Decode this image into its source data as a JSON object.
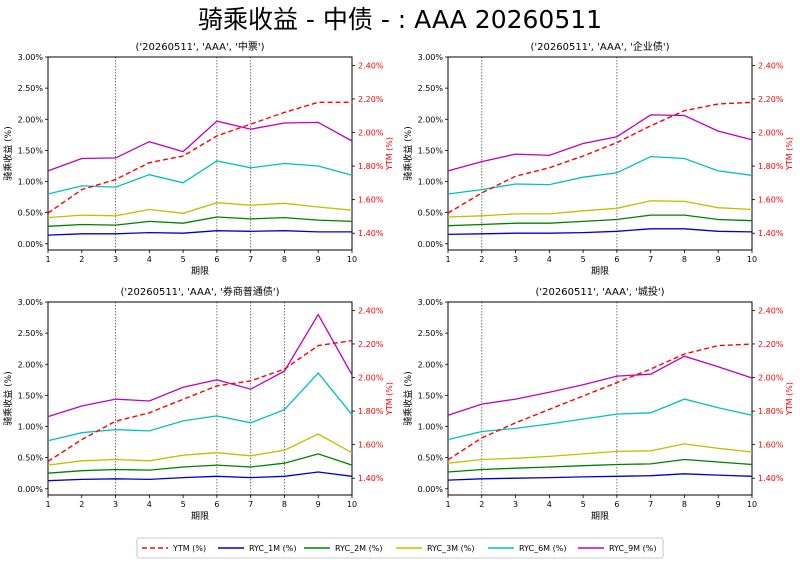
{
  "suptitle": "骑乘收益 - 中债 - : AAA 20260511",
  "legend": {
    "placement": "bottom-center",
    "entries": [
      {
        "label": "YTM (%)",
        "color": "#ff0000",
        "dash": true
      },
      {
        "label": "RYC_1M (%)",
        "color": "#0000cc",
        "dash": false
      },
      {
        "label": "RYC_2M (%)",
        "color": "#008000",
        "dash": false
      },
      {
        "label": "RYC_3M (%)",
        "color": "#c0c000",
        "dash": false
      },
      {
        "label": "RYC_6M (%)",
        "color": "#00c0c0",
        "dash": false
      },
      {
        "label": "RYC_9M (%)",
        "color": "#c000c0",
        "dash": false
      }
    ]
  },
  "chart_data": [
    {
      "type": "line",
      "title": "('20260511', 'AAA', '中票')",
      "xlabel": "期限",
      "ylabel": "骑乘收益 (%)",
      "y2label": "YTM (%)",
      "x": [
        1,
        2,
        3,
        4,
        5,
        6,
        7,
        8,
        9,
        10
      ],
      "xticks": [
        "1",
        "2",
        "3",
        "4",
        "5",
        "6",
        "7",
        "8",
        "9",
        "10"
      ],
      "ylim": [
        -0.1,
        3.0
      ],
      "yticks": [
        "0.00%",
        "0.50%",
        "1.00%",
        "1.50%",
        "2.00%",
        "2.50%",
        "3.00%"
      ],
      "y2lim": [
        1.3,
        2.45
      ],
      "y2ticks": [
        "1.40%",
        "1.60%",
        "1.80%",
        "2.00%",
        "2.20%",
        "2.40%"
      ],
      "vlines": [
        3,
        6,
        7
      ],
      "ytm": [
        1.52,
        1.66,
        1.72,
        1.82,
        1.86,
        1.98,
        2.05,
        2.12,
        2.18,
        2.18
      ],
      "series": [
        {
          "name": "RYC_1M (%)",
          "values": [
            0.14,
            0.16,
            0.16,
            0.18,
            0.17,
            0.21,
            0.2,
            0.21,
            0.19,
            0.19
          ]
        },
        {
          "name": "RYC_2M (%)",
          "values": [
            0.28,
            0.31,
            0.3,
            0.36,
            0.33,
            0.43,
            0.4,
            0.42,
            0.38,
            0.36
          ]
        },
        {
          "name": "RYC_3M (%)",
          "values": [
            0.42,
            0.46,
            0.45,
            0.55,
            0.49,
            0.66,
            0.62,
            0.65,
            0.59,
            0.54
          ]
        },
        {
          "name": "RYC_6M (%)",
          "values": [
            0.8,
            0.93,
            0.91,
            1.11,
            0.98,
            1.33,
            1.22,
            1.29,
            1.25,
            1.1
          ]
        },
        {
          "name": "RYC_9M (%)",
          "values": [
            1.17,
            1.37,
            1.38,
            1.64,
            1.48,
            1.97,
            1.84,
            1.94,
            1.95,
            1.65
          ]
        }
      ]
    },
    {
      "type": "line",
      "title": "('20260511', 'AAA', '企业债')",
      "xlabel": "期限",
      "ylabel": "骑乘收益 (%)",
      "y2label": "YTM (%)",
      "x": [
        1,
        2,
        3,
        4,
        5,
        6,
        7,
        8,
        9,
        10
      ],
      "xticks": [
        "1",
        "2",
        "3",
        "4",
        "5",
        "6",
        "7",
        "8",
        "9",
        "10"
      ],
      "ylim": [
        -0.1,
        3.0
      ],
      "yticks": [
        "0.00%",
        "0.50%",
        "1.00%",
        "1.50%",
        "2.00%",
        "2.50%",
        "3.00%"
      ],
      "y2lim": [
        1.3,
        2.45
      ],
      "y2ticks": [
        "1.40%",
        "1.60%",
        "1.80%",
        "2.00%",
        "2.20%",
        "2.40%"
      ],
      "vlines": [
        2,
        6
      ],
      "ytm": [
        1.52,
        1.64,
        1.74,
        1.79,
        1.86,
        1.94,
        2.04,
        2.13,
        2.17,
        2.18
      ],
      "series": [
        {
          "name": "RYC_1M (%)",
          "values": [
            0.15,
            0.16,
            0.17,
            0.17,
            0.18,
            0.2,
            0.24,
            0.24,
            0.2,
            0.19
          ]
        },
        {
          "name": "RYC_2M (%)",
          "values": [
            0.29,
            0.31,
            0.33,
            0.33,
            0.36,
            0.39,
            0.46,
            0.46,
            0.39,
            0.37
          ]
        },
        {
          "name": "RYC_3M (%)",
          "values": [
            0.43,
            0.45,
            0.48,
            0.48,
            0.53,
            0.57,
            0.69,
            0.68,
            0.58,
            0.55
          ]
        },
        {
          "name": "RYC_6M (%)",
          "values": [
            0.8,
            0.87,
            0.96,
            0.95,
            1.07,
            1.14,
            1.4,
            1.37,
            1.17,
            1.1
          ]
        },
        {
          "name": "RYC_9M (%)",
          "values": [
            1.17,
            1.32,
            1.44,
            1.42,
            1.61,
            1.72,
            2.07,
            2.06,
            1.81,
            1.67
          ]
        }
      ]
    },
    {
      "type": "line",
      "title": "('20260511', 'AAA', '券商普通债')",
      "xlabel": "期限",
      "ylabel": "骑乘收益 (%)",
      "y2label": "YTM (%)",
      "x": [
        1,
        2,
        3,
        4,
        5,
        6,
        7,
        8,
        9,
        10
      ],
      "xticks": [
        "1",
        "2",
        "3",
        "4",
        "5",
        "6",
        "7",
        "8",
        "9",
        "10"
      ],
      "ylim": [
        -0.1,
        3.0
      ],
      "yticks": [
        "0.00%",
        "0.50%",
        "1.00%",
        "1.50%",
        "2.00%",
        "2.50%",
        "3.00%"
      ],
      "y2lim": [
        1.3,
        2.45
      ],
      "y2ticks": [
        "1.40%",
        "1.60%",
        "1.80%",
        "2.00%",
        "2.20%",
        "2.40%"
      ],
      "vlines": [
        3,
        6,
        7,
        8
      ],
      "ytm": [
        1.5,
        1.63,
        1.74,
        1.79,
        1.87,
        1.95,
        1.98,
        2.05,
        2.19,
        2.22
      ],
      "series": [
        {
          "name": "RYC_1M (%)",
          "values": [
            0.13,
            0.15,
            0.16,
            0.15,
            0.18,
            0.2,
            0.18,
            0.2,
            0.27,
            0.2
          ]
        },
        {
          "name": "RYC_2M (%)",
          "values": [
            0.25,
            0.29,
            0.31,
            0.3,
            0.35,
            0.38,
            0.35,
            0.41,
            0.56,
            0.38
          ]
        },
        {
          "name": "RYC_3M (%)",
          "values": [
            0.38,
            0.45,
            0.47,
            0.45,
            0.54,
            0.58,
            0.53,
            0.62,
            0.88,
            0.58
          ]
        },
        {
          "name": "RYC_6M (%)",
          "values": [
            0.77,
            0.9,
            0.95,
            0.93,
            1.09,
            1.17,
            1.06,
            1.27,
            1.86,
            1.19
          ]
        },
        {
          "name": "RYC_9M (%)",
          "values": [
            1.16,
            1.33,
            1.44,
            1.41,
            1.63,
            1.75,
            1.6,
            1.89,
            2.8,
            1.83
          ]
        }
      ]
    },
    {
      "type": "line",
      "title": "('20260511', 'AAA', '城投')",
      "xlabel": "期限",
      "ylabel": "骑乘收益 (%)",
      "y2label": "YTM (%)",
      "x": [
        1,
        2,
        3,
        4,
        5,
        6,
        7,
        8,
        9,
        10
      ],
      "xticks": [
        "1",
        "2",
        "3",
        "4",
        "5",
        "6",
        "7",
        "8",
        "9",
        "10"
      ],
      "ylim": [
        -0.1,
        3.0
      ],
      "yticks": [
        "0.00%",
        "0.50%",
        "1.00%",
        "1.50%",
        "2.00%",
        "2.50%",
        "3.00%"
      ],
      "y2lim": [
        1.3,
        2.45
      ],
      "y2ticks": [
        "1.40%",
        "1.60%",
        "1.80%",
        "2.00%",
        "2.20%",
        "2.40%"
      ],
      "vlines": [
        2,
        6
      ],
      "ytm": [
        1.51,
        1.64,
        1.73,
        1.81,
        1.89,
        1.97,
        2.05,
        2.14,
        2.19,
        2.2
      ],
      "series": [
        {
          "name": "RYC_1M (%)",
          "values": [
            0.14,
            0.16,
            0.17,
            0.18,
            0.19,
            0.2,
            0.21,
            0.24,
            0.22,
            0.2
          ]
        },
        {
          "name": "RYC_2M (%)",
          "values": [
            0.27,
            0.31,
            0.33,
            0.35,
            0.37,
            0.39,
            0.4,
            0.47,
            0.43,
            0.39
          ]
        },
        {
          "name": "RYC_3M (%)",
          "values": [
            0.41,
            0.47,
            0.49,
            0.52,
            0.56,
            0.6,
            0.61,
            0.72,
            0.65,
            0.59
          ]
        },
        {
          "name": "RYC_6M (%)",
          "values": [
            0.79,
            0.92,
            0.97,
            1.04,
            1.12,
            1.2,
            1.22,
            1.44,
            1.3,
            1.18
          ]
        },
        {
          "name": "RYC_9M (%)",
          "values": [
            1.18,
            1.36,
            1.44,
            1.55,
            1.67,
            1.81,
            1.84,
            2.13,
            1.96,
            1.78
          ]
        }
      ]
    }
  ]
}
